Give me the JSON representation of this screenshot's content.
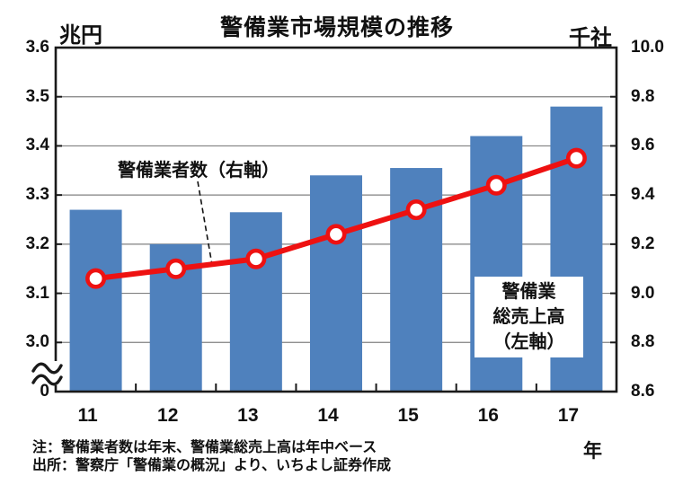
{
  "chart_data": {
    "type": "bar+line combo",
    "title": "警備業市場規模の推移",
    "categories": [
      "11",
      "12",
      "13",
      "14",
      "15",
      "16",
      "17"
    ],
    "series": [
      {
        "name": "警備業総売上高（左軸）",
        "type": "bar",
        "axis": "left",
        "unit": "兆円",
        "values": [
          3.27,
          3.2,
          3.265,
          3.34,
          3.355,
          3.42,
          3.48
        ]
      },
      {
        "name": "警備業者数（右軸）",
        "type": "line",
        "axis": "right",
        "unit": "千社",
        "values": [
          9.06,
          9.1,
          9.14,
          9.24,
          9.34,
          9.44,
          9.55
        ]
      }
    ],
    "left_axis": {
      "unit": "兆円",
      "tick_labels": [
        "3.6",
        "3.5",
        "3.4",
        "3.3",
        "3.2",
        "3.1",
        "3.0",
        "0"
      ],
      "range": [
        3.0,
        3.6
      ],
      "break_to_zero": true
    },
    "right_axis": {
      "unit": "千社",
      "tick_labels": [
        "10.0",
        "9.8",
        "9.6",
        "9.4",
        "9.2",
        "9.0",
        "8.8",
        "8.6"
      ],
      "range": [
        8.6,
        10.0
      ]
    },
    "x_axis": {
      "unit": "年"
    },
    "grid": true,
    "legend_position": "text annotations inside plot"
  },
  "annotations": {
    "line_label": "警備業者数（右軸）",
    "bar_label": "警備業\n総売上高\n（左軸）"
  },
  "notes": {
    "note": "注：警備業者数は年末、警備業総売上高は年中ベース",
    "source": "出所：警察庁「警備業の概況」より、いちよし証券作成"
  },
  "colors": {
    "bar": "#4F81BD",
    "line": "#EE1111",
    "marker_fill": "#FFFFFF",
    "grid": "#808080",
    "axis": "#1A1A1A",
    "text": "#111111"
  }
}
